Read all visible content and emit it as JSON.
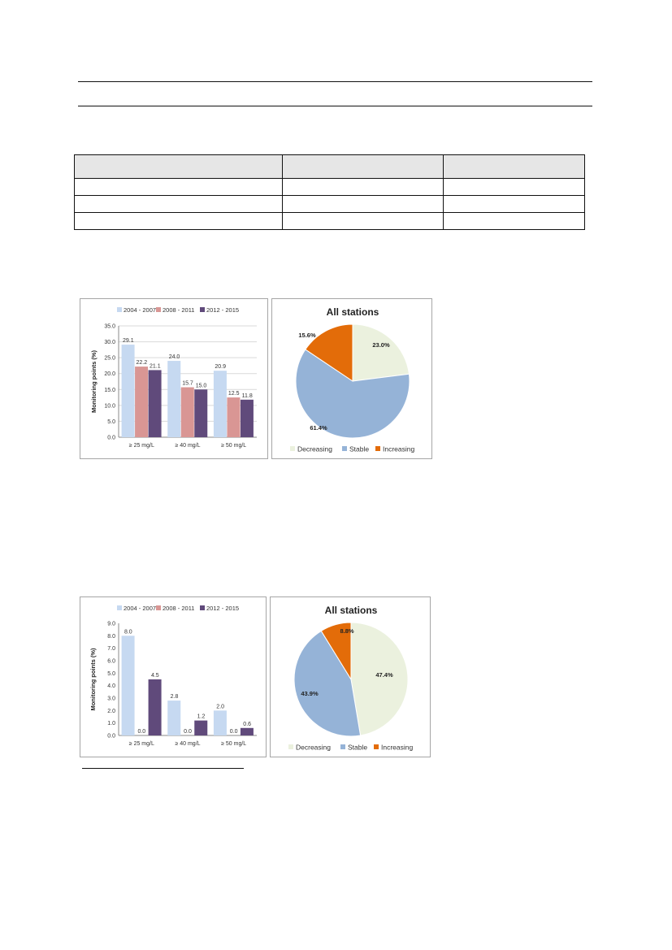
{
  "palette": {
    "bar_2004_2007": "#c6d9f1",
    "bar_2008_2011": "#d99694",
    "bar_2012_2015": "#604a7b",
    "pie_decreasing": "#ebf1de",
    "pie_stable": "#95b3d7",
    "pie_increasing": "#e36c09",
    "gridline": "#d9d9d9",
    "table_header": "#e6e6e6"
  },
  "table": {
    "rows": 4,
    "cols": 3
  },
  "charts": [
    {
      "bar": {
        "type": "bar",
        "ylabel": "Monitoring points (%)",
        "ylim": [
          0,
          35
        ],
        "yticks": [
          "0.0",
          "5.0",
          "10.0",
          "15.0",
          "20.0",
          "25.0",
          "30.0",
          "35.0"
        ],
        "categories": [
          "≥ 25 mg/L",
          "≥ 40 mg/L",
          "≥ 50 mg/L"
        ],
        "series": [
          {
            "name": "2004 - 2007",
            "values": [
              29.1,
              24.0,
              20.9
            ],
            "labels": [
              "29.1",
              "24.0",
              "20.9"
            ]
          },
          {
            "name": "2008 - 2011",
            "values": [
              22.2,
              15.7,
              12.5
            ],
            "labels": [
              "22.2",
              "15.7",
              "12.5"
            ]
          },
          {
            "name": "2012 - 2015",
            "values": [
              21.1,
              15.0,
              11.8
            ],
            "labels": [
              "21.1",
              "15.0",
              "11.8"
            ]
          }
        ],
        "grid": true,
        "legend_position": "top"
      },
      "pie": {
        "type": "pie",
        "title": "All stations",
        "slices": [
          {
            "name": "Decreasing",
            "value": 23.0,
            "label": "23.0%"
          },
          {
            "name": "Stable",
            "value": 61.4,
            "label": "61.4%"
          },
          {
            "name": "Increasing",
            "value": 15.6,
            "label": "15.6%"
          }
        ],
        "legend_position": "bottom"
      }
    },
    {
      "bar": {
        "type": "bar",
        "ylabel": "Monitoring points (%)",
        "ylim": [
          0,
          9
        ],
        "yticks": [
          "0.0",
          "1.0",
          "2.0",
          "3.0",
          "4.0",
          "5.0",
          "6.0",
          "7.0",
          "8.0",
          "9.0"
        ],
        "categories": [
          "≥ 25 mg/L",
          "≥ 40 mg/L",
          "≥ 50 mg/L"
        ],
        "series": [
          {
            "name": "2004 - 2007",
            "values": [
              8.0,
              2.8,
              2.0
            ],
            "labels": [
              "8.0",
              "2.8",
              "2.0"
            ]
          },
          {
            "name": "2008 - 2011",
            "values": [
              0.0,
              0.0,
              0.0
            ],
            "labels": [
              "0.0",
              "0.0",
              "0.0"
            ]
          },
          {
            "name": "2012 - 2015",
            "values": [
              4.5,
              1.2,
              0.6
            ],
            "labels": [
              "4.5",
              "1.2",
              "0.6"
            ]
          }
        ],
        "grid": false,
        "legend_position": "top"
      },
      "pie": {
        "type": "pie",
        "title": "All stations",
        "slices": [
          {
            "name": "Decreasing",
            "value": 47.4,
            "label": "47.4%"
          },
          {
            "name": "Stable",
            "value": 43.9,
            "label": "43.9%"
          },
          {
            "name": "Increasing",
            "value": 8.8,
            "label": "8.8%"
          }
        ],
        "legend_position": "bottom"
      }
    }
  ],
  "chart_data": [
    {
      "type": "bar",
      "categories": [
        "≥ 25 mg/L",
        "≥ 40 mg/L",
        "≥ 50 mg/L"
      ],
      "series": [
        {
          "name": "2004 - 2007",
          "values": [
            29.1,
            24.0,
            20.9
          ]
        },
        {
          "name": "2008 - 2011",
          "values": [
            22.2,
            15.7,
            12.5
          ]
        },
        {
          "name": "2012 - 2015",
          "values": [
            21.1,
            15.0,
            11.8
          ]
        }
      ],
      "ylabel": "Monitoring points (%)",
      "ylim": [
        0,
        35
      ],
      "grid": true,
      "legend_position": "top"
    },
    {
      "type": "pie",
      "title": "All stations",
      "labels": [
        "Decreasing",
        "Stable",
        "Increasing"
      ],
      "values": [
        23.0,
        61.4,
        15.6
      ],
      "legend_position": "bottom"
    },
    {
      "type": "bar",
      "categories": [
        "≥ 25 mg/L",
        "≥ 40 mg/L",
        "≥ 50 mg/L"
      ],
      "series": [
        {
          "name": "2004 - 2007",
          "values": [
            8.0,
            2.8,
            2.0
          ]
        },
        {
          "name": "2008 - 2011",
          "values": [
            0.0,
            0.0,
            0.0
          ]
        },
        {
          "name": "2012 - 2015",
          "values": [
            4.5,
            1.2,
            0.6
          ]
        }
      ],
      "ylabel": "Monitoring points (%)",
      "ylim": [
        0,
        9
      ],
      "grid": false,
      "legend_position": "top"
    },
    {
      "type": "pie",
      "title": "All stations",
      "labels": [
        "Decreasing",
        "Stable",
        "Increasing"
      ],
      "values": [
        47.4,
        43.9,
        8.8
      ],
      "legend_position": "bottom"
    }
  ]
}
